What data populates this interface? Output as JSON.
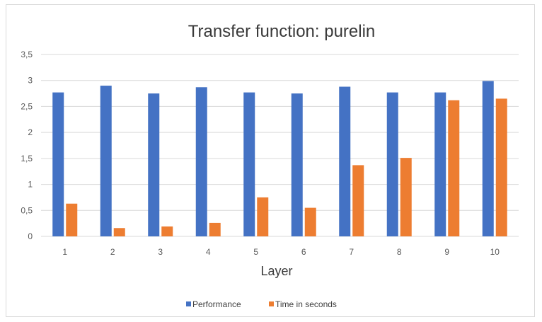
{
  "chart_data": {
    "type": "bar",
    "title": "Transfer function: purelin",
    "xlabel": "Layer",
    "ylabel": "",
    "categories": [
      "1",
      "2",
      "3",
      "4",
      "5",
      "6",
      "7",
      "8",
      "9",
      "10"
    ],
    "series": [
      {
        "name": "Performance",
        "color": "#4472C4",
        "values": [
          2.77,
          2.9,
          2.75,
          2.87,
          2.77,
          2.75,
          2.88,
          2.77,
          2.77,
          2.99
        ]
      },
      {
        "name": "Time in seconds",
        "color": "#ED7D31",
        "values": [
          0.63,
          0.16,
          0.19,
          0.26,
          0.75,
          0.55,
          1.37,
          1.51,
          2.62,
          2.65
        ]
      }
    ],
    "ylim": [
      0,
      3.5
    ],
    "yticks": [
      "0",
      "0,5",
      "1",
      "1,5",
      "2",
      "2,5",
      "3",
      "3,5"
    ],
    "grid": true,
    "legend_position": "bottom"
  }
}
